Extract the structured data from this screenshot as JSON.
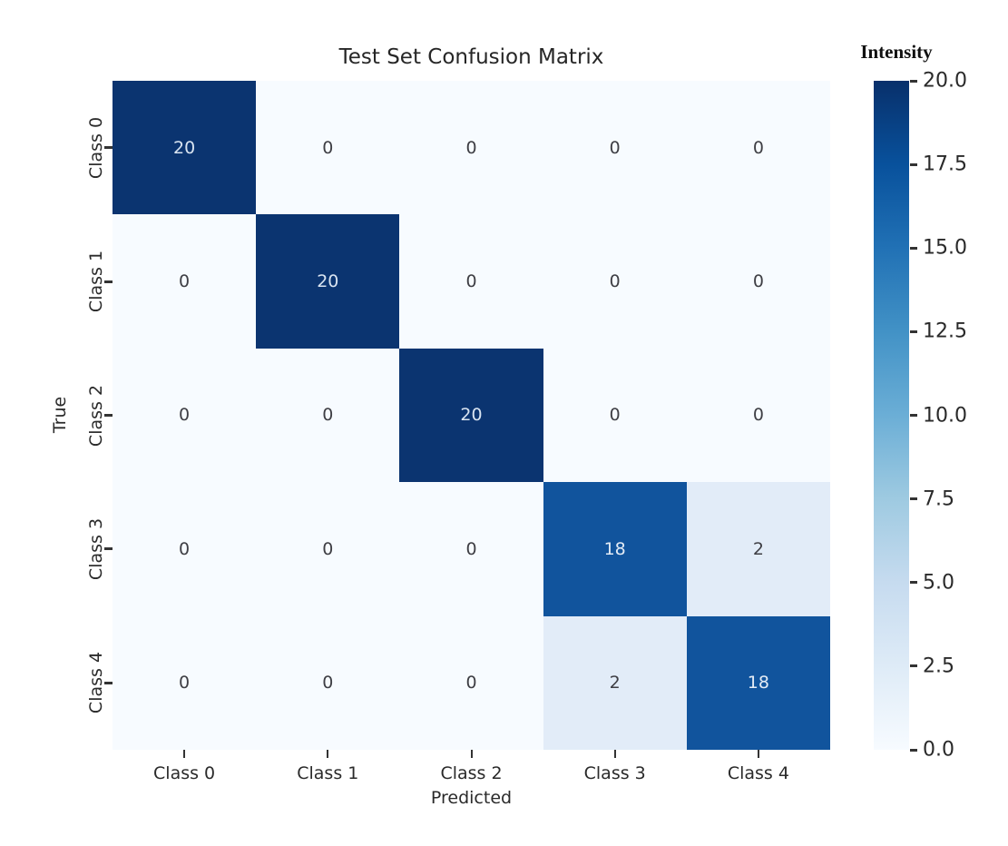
{
  "figure": {
    "title": "Test Set Confusion Matrix",
    "colorbar_label": "Intensity"
  },
  "chart_data": {
    "type": "heatmap",
    "title": "Test Set Confusion Matrix",
    "xlabel": "Predicted",
    "ylabel": "True",
    "x_categories": [
      "Class 0",
      "Class 1",
      "Class 2",
      "Class 3",
      "Class 4"
    ],
    "y_categories": [
      "Class 0",
      "Class 1",
      "Class 2",
      "Class 3",
      "Class 4"
    ],
    "values": [
      [
        20,
        0,
        0,
        0,
        0
      ],
      [
        0,
        20,
        0,
        0,
        0
      ],
      [
        0,
        0,
        20,
        0,
        0
      ],
      [
        0,
        0,
        0,
        18,
        2
      ],
      [
        0,
        0,
        0,
        2,
        18
      ]
    ],
    "colormap": "Blues",
    "vmin": 0,
    "vmax": 20,
    "grid": false,
    "annotations": true,
    "colorbar": {
      "label": "Intensity",
      "position": "right",
      "ticks": [
        "20.0",
        "17.5",
        "15.0",
        "12.5",
        "10.0",
        "7.5",
        "5.0",
        "2.5",
        "0.0"
      ]
    }
  },
  "colors": {
    "background": "#ffffff",
    "tick_text": "#2a2a2a",
    "title_text": "#262626",
    "colorbar_stops_top_to_bottom": [
      "#08306b",
      "#08519c",
      "#2171b5",
      "#4292c6",
      "#6baed6",
      "#9ecae1",
      "#c6dbef",
      "#deebf7",
      "#f7fbff"
    ],
    "value_colors": {
      "20": {
        "bg": "#0b3470",
        "fg": "#d9e4f1"
      },
      "18": {
        "bg": "#11549d",
        "fg": "#e3ebf5"
      },
      "2": {
        "bg": "#e2ecf8",
        "fg": "#3e3e44"
      },
      "0": {
        "bg": "#f7fbff",
        "fg": "#3e3e44"
      }
    }
  }
}
